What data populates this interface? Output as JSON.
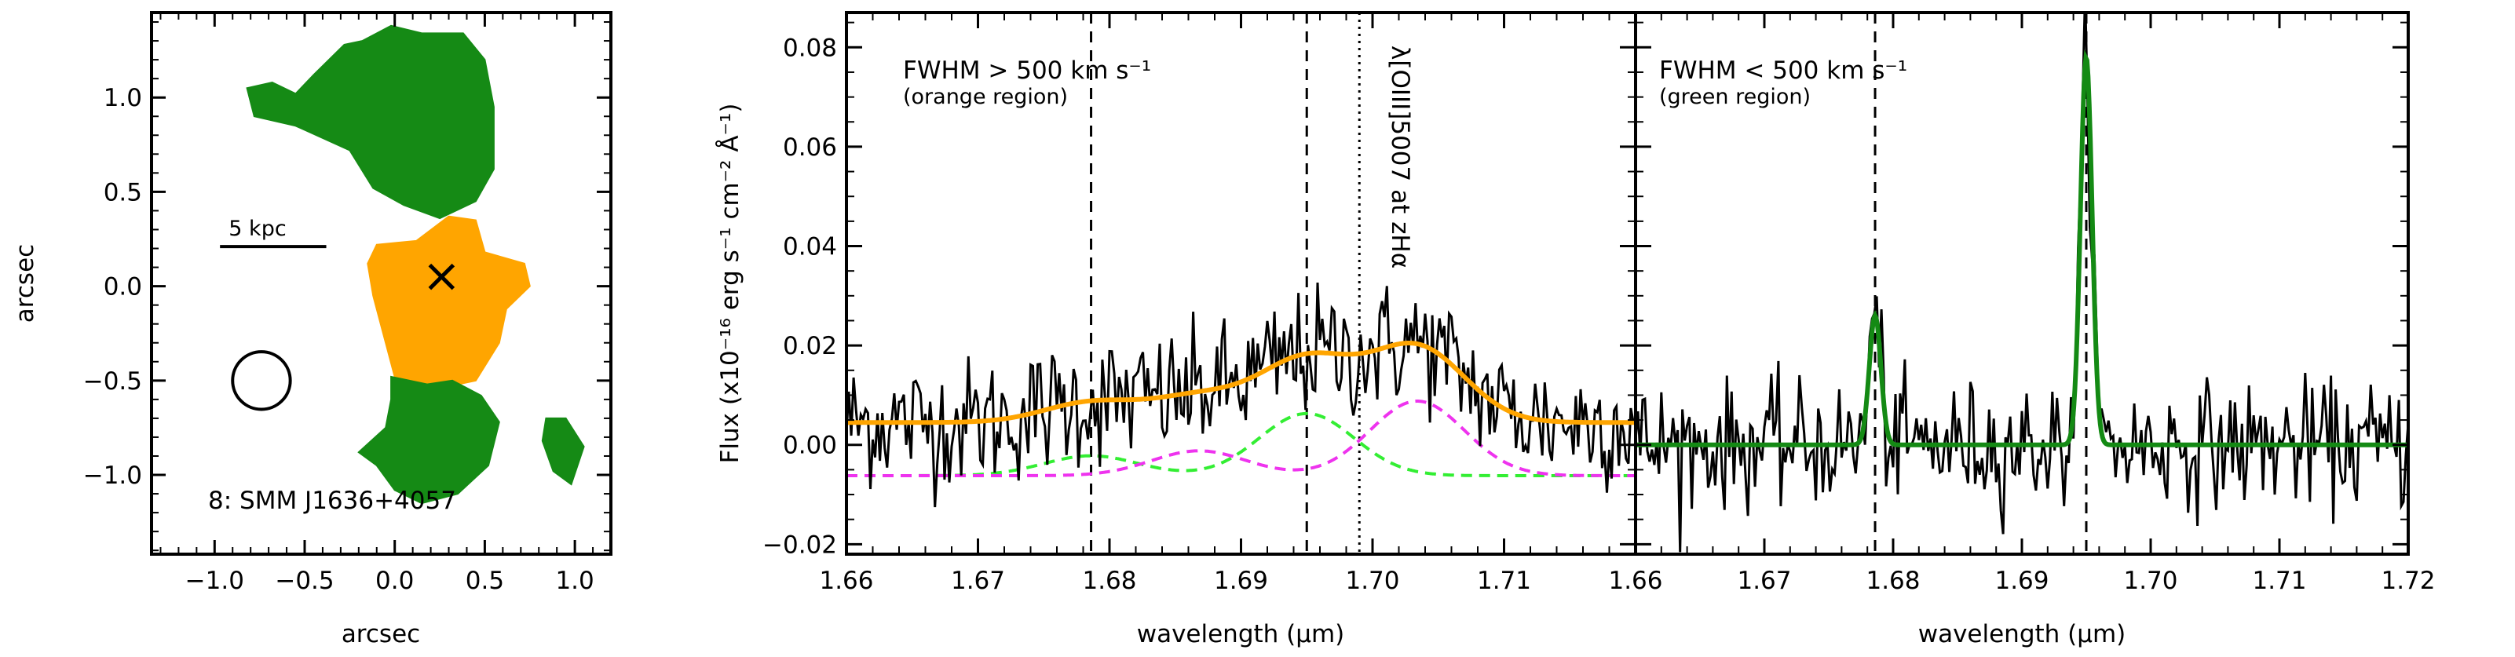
{
  "chart_data": [
    {
      "type": "heatmap",
      "title": "",
      "annotation": "8: SMM J1636+4057",
      "xlabel": "arcsec",
      "ylabel": "arcsec",
      "xlim": [
        -1.35,
        1.2
      ],
      "ylim": [
        -1.42,
        1.45
      ],
      "xticks": [
        "−1.0",
        "−0.5",
        "0.0",
        "0.5",
        "1.0"
      ],
      "xtick_values": [
        -1.0,
        -0.5,
        0.0,
        0.5,
        1.0
      ],
      "yticks": [
        "1.0",
        "0.5",
        "0.0",
        "−0.5",
        "−1.0"
      ],
      "ytick_values": [
        1.0,
        0.5,
        0.0,
        -0.5,
        -1.0
      ],
      "scalebar_label": "5 kpc",
      "scalebar_range": [
        -0.97,
        -0.38
      ],
      "scalebar_y": 0.21,
      "beam_center": [
        -0.74,
        -0.5
      ],
      "beam_radius": 0.16,
      "marker_position": [
        0.26,
        0.05
      ],
      "region_colors": {
        "green": "#158a15",
        "orange": "#ffa500"
      },
      "regions": [
        {
          "name": "green",
          "color": "#158a15",
          "area": "north",
          "outline": [
            [
              -0.18,
              1.3
            ],
            [
              -0.02,
              1.38
            ],
            [
              0.15,
              1.34
            ],
            [
              0.38,
              1.34
            ],
            [
              0.5,
              1.2
            ],
            [
              0.55,
              0.95
            ],
            [
              0.55,
              0.62
            ],
            [
              0.45,
              0.45
            ],
            [
              0.25,
              0.36
            ],
            [
              0.05,
              0.43
            ],
            [
              -0.12,
              0.52
            ],
            [
              -0.25,
              0.72
            ],
            [
              -0.55,
              0.85
            ],
            [
              -0.78,
              0.9
            ],
            [
              -0.82,
              1.05
            ],
            [
              -0.68,
              1.08
            ],
            [
              -0.55,
              1.02
            ],
            [
              -0.45,
              1.12
            ],
            [
              -0.28,
              1.28
            ]
          ]
        },
        {
          "name": "orange",
          "color": "#ffa500",
          "area": "center",
          "outline": [
            [
              -0.1,
              0.22
            ],
            [
              0.12,
              0.24
            ],
            [
              0.3,
              0.37
            ],
            [
              0.45,
              0.35
            ],
            [
              0.5,
              0.18
            ],
            [
              0.72,
              0.12
            ],
            [
              0.75,
              0.0
            ],
            [
              0.62,
              -0.12
            ],
            [
              0.58,
              -0.3
            ],
            [
              0.45,
              -0.5
            ],
            [
              0.2,
              -0.55
            ],
            [
              0.0,
              -0.48
            ],
            [
              -0.05,
              -0.3
            ],
            [
              -0.12,
              -0.05
            ],
            [
              -0.15,
              0.12
            ]
          ]
        },
        {
          "name": "green",
          "color": "#158a15",
          "area": "south",
          "outline": [
            [
              -0.02,
              -0.48
            ],
            [
              0.18,
              -0.52
            ],
            [
              0.32,
              -0.5
            ],
            [
              0.48,
              -0.58
            ],
            [
              0.58,
              -0.72
            ],
            [
              0.52,
              -0.95
            ],
            [
              0.35,
              -1.1
            ],
            [
              0.15,
              -1.15
            ],
            [
              0.0,
              -1.08
            ],
            [
              -0.1,
              -0.95
            ],
            [
              -0.2,
              -0.88
            ],
            [
              -0.05,
              -0.75
            ],
            [
              -0.02,
              -0.6
            ]
          ]
        },
        {
          "name": "green",
          "color": "#158a15",
          "area": "east",
          "outline": [
            [
              0.84,
              -0.7
            ],
            [
              0.95,
              -0.7
            ],
            [
              1.05,
              -0.85
            ],
            [
              0.98,
              -1.05
            ],
            [
              0.88,
              -0.98
            ],
            [
              0.82,
              -0.82
            ]
          ]
        }
      ]
    },
    {
      "type": "line",
      "title": "",
      "annotations": [
        "FWHM > 500 km s⁻¹",
        "(orange region)",
        "λ[OIII]5007 at zHα"
      ],
      "xlabel": "wavelength (μm)",
      "ylabel": "Flux (x10⁻¹⁶ erg s⁻¹ cm⁻² Å⁻¹)",
      "xlim": [
        1.66,
        1.72
      ],
      "ylim": [
        -0.022,
        0.087
      ],
      "xticks": [
        "1.66",
        "1.67",
        "1.68",
        "1.69",
        "1.70",
        "1.71"
      ],
      "xtick_values": [
        1.66,
        1.67,
        1.68,
        1.69,
        1.7,
        1.71
      ],
      "yticks": [
        "0.08",
        "0.06",
        "0.04",
        "0.02",
        "0.00",
        "−0.02"
      ],
      "ytick_values": [
        0.08,
        0.06,
        0.04,
        0.02,
        0.0,
        -0.02
      ],
      "dashed_lines": [
        1.6786,
        1.695
      ],
      "dotted_line": 1.699,
      "series": [
        {
          "kind": "data",
          "color": "#000000",
          "noise": 0.0065,
          "model": "orange",
          "offset": 0.0
        },
        {
          "kind": "fit",
          "color": "#ffa500",
          "components": [
            {
              "center": 1.6786,
              "amp": 0.004,
              "sigma": 0.0036
            },
            {
              "center": 1.695,
              "amp": 0.0125,
              "sigma": 0.0036
            },
            {
              "center": 1.6868,
              "amp": 0.005,
              "sigma": 0.0036
            },
            {
              "center": 1.7034,
              "amp": 0.015,
              "sigma": 0.0036
            }
          ],
          "offset": 0.0045
        },
        {
          "kind": "dashed",
          "color": "#33ee33",
          "components": [
            {
              "center": 1.6786,
              "amp": 0.004,
              "sigma": 0.0036
            },
            {
              "center": 1.695,
              "amp": 0.0125,
              "sigma": 0.0036
            }
          ],
          "offset": -0.0062
        },
        {
          "kind": "dashed",
          "color": "#ee33ee",
          "components": [
            {
              "center": 1.6868,
              "amp": 0.005,
              "sigma": 0.0036
            },
            {
              "center": 1.7034,
              "amp": 0.015,
              "sigma": 0.0036
            }
          ],
          "offset": -0.0062
        }
      ]
    },
    {
      "type": "line",
      "title": "",
      "annotations": [
        "FWHM < 500 km s⁻¹",
        "(green region)"
      ],
      "xlabel": "wavelength (μm)",
      "xlim": [
        1.66,
        1.72
      ],
      "ylim": [
        -0.022,
        0.087
      ],
      "xticks": [
        "1.66",
        "1.67",
        "1.68",
        "1.69",
        "1.70",
        "1.71",
        "1.72"
      ],
      "xtick_values": [
        1.66,
        1.67,
        1.68,
        1.69,
        1.7,
        1.71,
        1.72
      ],
      "dashed_lines": [
        1.6786,
        1.695
      ],
      "series": [
        {
          "kind": "data",
          "color": "#000000",
          "noise": 0.0062,
          "model": "green",
          "offset": 0.0
        },
        {
          "kind": "fit",
          "color": "#148a14",
          "components": [
            {
              "center": 1.6786,
              "amp": 0.026,
              "sigma": 0.00045
            },
            {
              "center": 1.695,
              "amp": 0.078,
              "sigma": 0.00045
            }
          ],
          "offset": 0.0
        }
      ]
    }
  ]
}
